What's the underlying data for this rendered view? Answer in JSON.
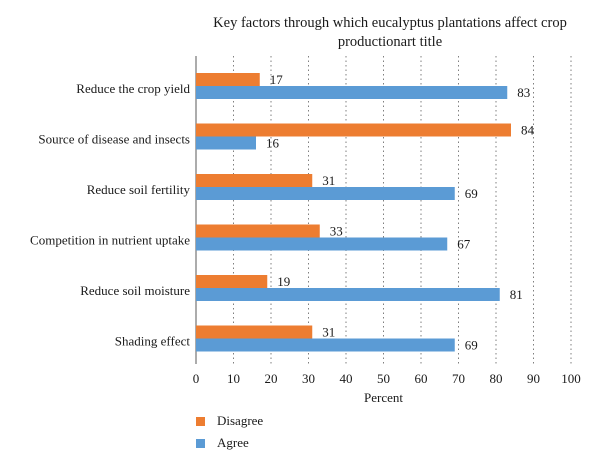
{
  "chart_data": {
    "type": "bar",
    "orientation": "horizontal",
    "title": "Key factors through which eucalyptus plantations affect crop productionart title",
    "xlabel": "Percent",
    "ylabel": "",
    "xlim": [
      0,
      100
    ],
    "x_ticks": [
      "0",
      "10",
      "20",
      "30",
      "40",
      "50",
      "60",
      "70",
      "80",
      "90",
      "100"
    ],
    "grid": "vertical dotted",
    "legend_position": "bottom-left",
    "categories": [
      "Reduce the crop yield",
      "Source of disease and insects",
      "Reduce soil fertility",
      "Competition in nutrient uptake",
      "Reduce soil moisture",
      "Shading effect"
    ],
    "series": [
      {
        "name": "Disagree",
        "color": "#ed7d31",
        "values": [
          17,
          84,
          31,
          33,
          19,
          31
        ]
      },
      {
        "name": "Agree",
        "color": "#5b9bd5",
        "values": [
          83,
          16,
          69,
          67,
          81,
          69
        ]
      }
    ]
  }
}
